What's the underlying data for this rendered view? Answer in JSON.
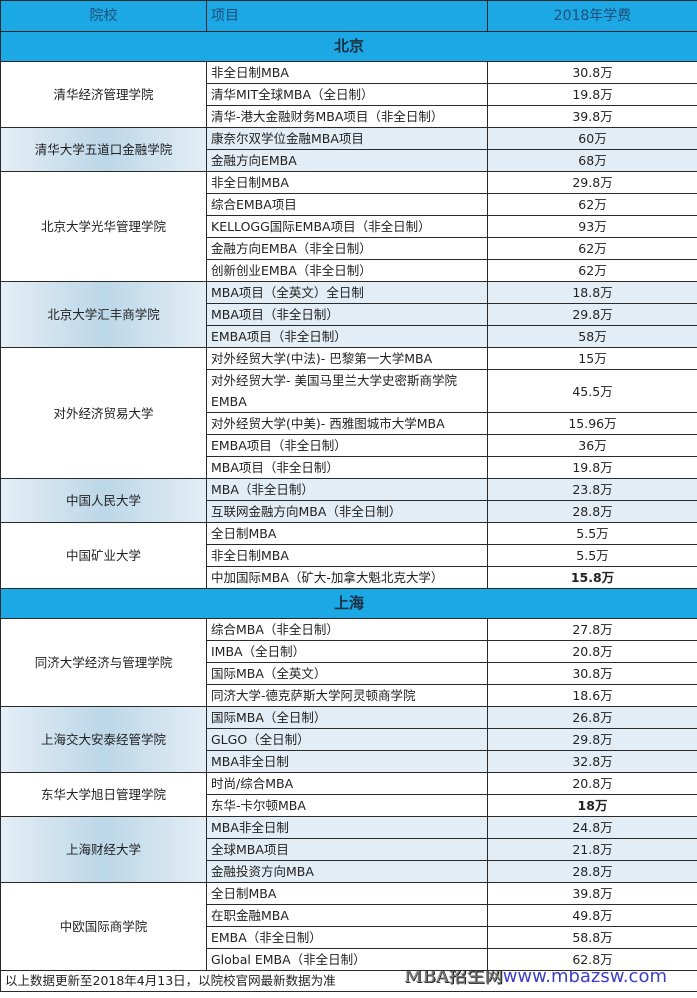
{
  "header": {
    "school": "院校",
    "program": "项目",
    "fee": "2018年学费"
  },
  "sections": [
    {
      "title": "北京",
      "groups": [
        {
          "school": "清华经济管理学院",
          "shaded": false,
          "rows": [
            {
              "program": "非全日制MBA",
              "fee": "30.8万"
            },
            {
              "program": "清华MIT全球MBA（全日制）",
              "fee": "19.8万"
            },
            {
              "program": "清华-港大金融财务MBA项目（非全日制）",
              "fee": "39.8万"
            }
          ]
        },
        {
          "school": "清华大学五道口金融学院",
          "shaded": true,
          "rows": [
            {
              "program": "康奈尔双学位金融MBA项目",
              "fee": "60万"
            },
            {
              "program": "金融方向EMBA",
              "fee": "68万"
            }
          ]
        },
        {
          "school": "北京大学光华管理学院",
          "shaded": false,
          "rows": [
            {
              "program": "非全日制MBA",
              "fee": "29.8万"
            },
            {
              "program": "综合EMBA项目",
              "fee": "62万"
            },
            {
              "program": "KELLOGG国际EMBA项目（非全日制）",
              "fee": "93万"
            },
            {
              "program": "金融方向EMBA（非全日制）",
              "fee": "62万"
            },
            {
              "program": "创新创业EMBA（非全日制）",
              "fee": "62万"
            }
          ]
        },
        {
          "school": "北京大学汇丰商学院",
          "shaded": true,
          "rows": [
            {
              "program": "MBA项目（全英文）全日制",
              "fee": "18.8万"
            },
            {
              "program": "MBA项目（非全日制）",
              "fee": "29.8万"
            },
            {
              "program": "EMBA项目（非全日制）",
              "fee": "58万"
            }
          ]
        },
        {
          "school": "对外经济贸易大学",
          "shaded": false,
          "rows": [
            {
              "program": "对外经贸大学(中法)- 巴黎第一大学MBA",
              "fee": "15万"
            },
            {
              "program": "对外经贸大学- 美国马里兰大学史密斯商学院EMBA",
              "fee": "45.5万",
              "multi": true
            },
            {
              "program": "对外经贸大学(中美)- 西雅图城市大学MBA",
              "fee": "15.96万"
            },
            {
              "program": "EMBA项目（非全日制）",
              "fee": "36万"
            },
            {
              "program": "MBA项目（非全日制）",
              "fee": "19.8万"
            }
          ]
        },
        {
          "school": "中国人民大学",
          "shaded": true,
          "rows": [
            {
              "program": "MBA（非全日制）",
              "fee": "23.8万"
            },
            {
              "program": "互联网金融方向MBA（非全日制）",
              "fee": "28.8万"
            }
          ]
        },
        {
          "school": "中国矿业大学",
          "shaded": false,
          "rows": [
            {
              "program": "全日制MBA",
              "fee": "5.5万"
            },
            {
              "program": "非全日制MBA",
              "fee": "5.5万"
            },
            {
              "program": "中加国际MBA（矿大-加拿大魁北克大学）",
              "fee": "15.8万",
              "bold": true
            }
          ]
        }
      ]
    },
    {
      "title": "上海",
      "groups": [
        {
          "school": "同济大学经济与管理学院",
          "shaded": false,
          "rows": [
            {
              "program": "综合MBA（非全日制）",
              "fee": "27.8万"
            },
            {
              "program": "IMBA（全日制）",
              "fee": "20.8万"
            },
            {
              "program": "国际MBA（全英文）",
              "fee": "30.8万"
            },
            {
              "program": "同济大学-德克萨斯大学阿灵顿商学院",
              "fee": "18.6万"
            }
          ]
        },
        {
          "school": "上海交大安泰经管学院",
          "shaded": true,
          "rows": [
            {
              "program": "国际MBA（全日制）",
              "fee": "26.8万"
            },
            {
              "program": "GLGO（全日制）",
              "fee": "29.8万"
            },
            {
              "program": "MBA非全日制",
              "fee": "32.8万"
            }
          ]
        },
        {
          "school": "东华大学旭日管理学院",
          "shaded": false,
          "rows": [
            {
              "program": "时尚/综合MBA",
              "fee": "20.8万"
            },
            {
              "program": "东华-卡尔顿MBA",
              "fee": "18万",
              "bold": true
            }
          ]
        },
        {
          "school": "上海财经大学",
          "shaded": true,
          "rows": [
            {
              "program": "MBA非全日制",
              "fee": "24.8万"
            },
            {
              "program": "全球MBA项目",
              "fee": "21.8万"
            },
            {
              "program": "金融投资方向MBA",
              "fee": "28.8万"
            }
          ]
        },
        {
          "school": "中欧国际商学院",
          "shaded": false,
          "rows": [
            {
              "program": "全日制MBA",
              "fee": "39.8万"
            },
            {
              "program": "在职金融MBA",
              "fee": "49.8万"
            },
            {
              "program": "EMBA（非全日制）",
              "fee": "58.8万"
            },
            {
              "program": "Global EMBA（非全日制）",
              "fee": "62.8万"
            }
          ]
        }
      ]
    }
  ],
  "footer": {
    "note": "以上数据更新至2018年4月13日，以院校官网最新数据为准"
  },
  "watermark": {
    "name": "MBA招生网",
    "url": "www.mbazsw.com"
  },
  "colors": {
    "header_bg": "#1ba8e4",
    "shaded_bg": "#e3edf5"
  }
}
